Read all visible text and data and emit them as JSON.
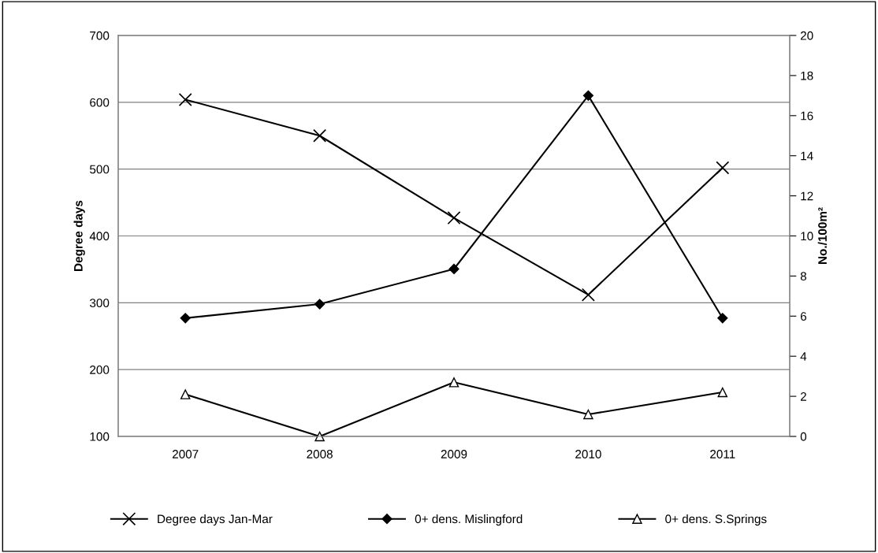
{
  "chart_data": {
    "type": "line",
    "categories": [
      "2007",
      "2008",
      "2009",
      "2010",
      "2011"
    ],
    "ylabel": "Degree days",
    "y2label": "No./100m²",
    "ylim": [
      100,
      700
    ],
    "yticks": [
      100,
      200,
      300,
      400,
      500,
      600,
      700
    ],
    "y2lim": [
      0,
      20
    ],
    "y2ticks": [
      0,
      2,
      4,
      6,
      8,
      10,
      12,
      14,
      16,
      18,
      20
    ],
    "grid": "y",
    "legend": "bottom",
    "line_style": "solid",
    "series": [
      {
        "name": "Degree days Jan-Mar",
        "color": "#000000",
        "marker": "cross",
        "values": [
          604,
          550,
          427,
          312,
          502
        ]
      },
      {
        "name": "0+ dens. Mislingford",
        "color": "#000000",
        "marker": "diamond",
        "axis": "y2",
        "values": [
          5.9,
          6.6,
          8.35,
          17.0,
          5.9
        ]
      },
      {
        "name": "0+ dens. S.Springs",
        "color": "#000000",
        "marker": "triangle",
        "axis": "y2",
        "values": [
          2.1,
          0,
          2.7,
          1.1,
          2.2
        ]
      }
    ]
  }
}
